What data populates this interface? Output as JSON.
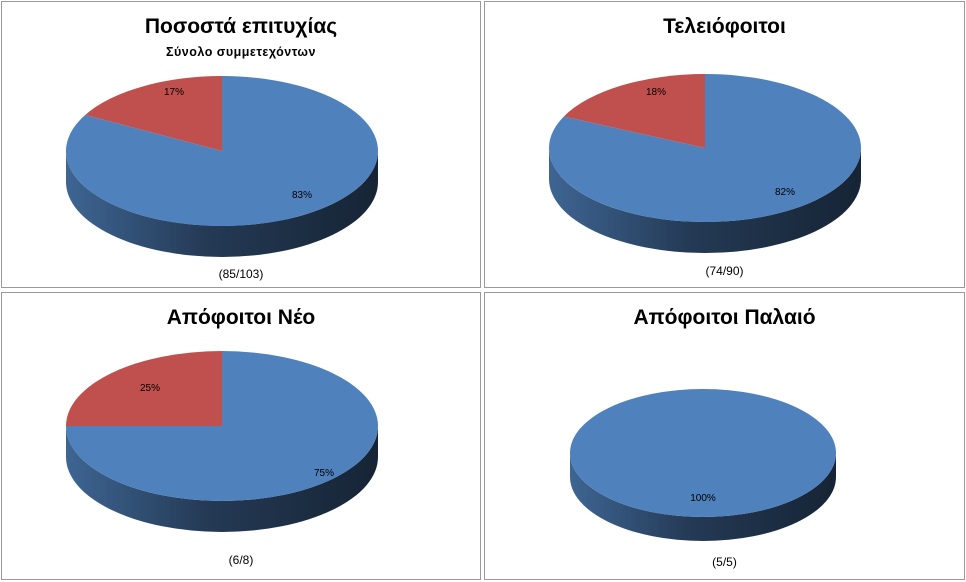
{
  "chart_data": [
    {
      "type": "pie",
      "title": "Ποσοστά επιτυχίας",
      "subtitle": "Σύνολο συμμετεχόντων",
      "footer": "(85/103)",
      "values": [
        83,
        17
      ],
      "labels": [
        "83%",
        "17%"
      ],
      "colors": [
        "#4f81bd",
        "#c0504d"
      ]
    },
    {
      "type": "pie",
      "title": "Τελειόφοιτοι",
      "footer": "(74/90)",
      "values": [
        82,
        18
      ],
      "labels": [
        "82%",
        "18%"
      ],
      "colors": [
        "#4f81bd",
        "#c0504d"
      ]
    },
    {
      "type": "pie",
      "title": "Απόφοιτοι Νέο",
      "footer": "(6/8)",
      "values": [
        75,
        25
      ],
      "labels": [
        "75%",
        "25%"
      ],
      "colors": [
        "#4f81bd",
        "#c0504d"
      ]
    },
    {
      "type": "pie",
      "title": "Απόφοιτοι  Παλαιό",
      "footer": "(5/5)",
      "values": [
        100
      ],
      "labels": [
        "100%"
      ],
      "colors": [
        "#4f81bd"
      ]
    }
  ]
}
